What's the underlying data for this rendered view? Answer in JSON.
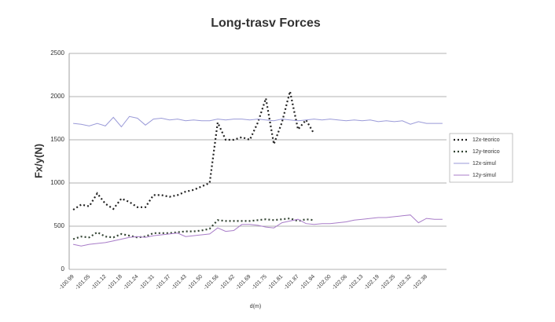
{
  "chart_data": {
    "type": "line",
    "title": "Long-trasv Forces",
    "xlabel": "d(m)",
    "ylabel": "Fx/y(N)",
    "categories": [
      "-100.99",
      null,
      "-101.05",
      null,
      "-101.12",
      null,
      "-101.18",
      null,
      "-101.24",
      null,
      "-101.31",
      null,
      "-101.37",
      null,
      "-101.43",
      null,
      "-101.50",
      null,
      "-101.56",
      null,
      "-101.62",
      null,
      "-101.69",
      null,
      "-101.75",
      null,
      "-101.81",
      null,
      "-101.87",
      null,
      "-101.94",
      null,
      "-102.00",
      null,
      "-102.06",
      null,
      "-102.13",
      null,
      "-102.19",
      null,
      "-102.25",
      null,
      "-102.32",
      null,
      "-102.38",
      null,
      null
    ],
    "series": [
      {
        "name": "12x-teorico",
        "color": "#222222",
        "dash": "2,3",
        "values": [
          690,
          750,
          730,
          880,
          760,
          700,
          820,
          780,
          720,
          720,
          860,
          860,
          840,
          860,
          900,
          920,
          960,
          1000,
          1700,
          1500,
          1500,
          1530,
          1500,
          1700,
          1980,
          1450,
          1700,
          2060,
          1620,
          1730,
          1570,
          null,
          null,
          null,
          null,
          null,
          null,
          null,
          null,
          null,
          null,
          null,
          null,
          null,
          null,
          null,
          null
        ]
      },
      {
        "name": "12y-teorico",
        "color": "#334433",
        "dash": "2,3",
        "values": [
          350,
          380,
          370,
          430,
          380,
          370,
          410,
          390,
          370,
          380,
          420,
          420,
          420,
          430,
          440,
          440,
          450,
          470,
          570,
          560,
          560,
          560,
          560,
          570,
          580,
          570,
          580,
          590,
          560,
          580,
          570,
          null,
          null,
          null,
          null,
          null,
          null,
          null,
          null,
          null,
          null,
          null,
          null,
          null,
          null,
          null,
          null
        ]
      },
      {
        "name": "12x-simul",
        "color": "#9a9ad8",
        "dash": "none",
        "values": [
          1690,
          1680,
          1660,
          1690,
          1660,
          1760,
          1650,
          1770,
          1750,
          1670,
          1740,
          1750,
          1730,
          1740,
          1720,
          1730,
          1720,
          1720,
          1740,
          1730,
          1740,
          1740,
          1730,
          1740,
          1730,
          1720,
          1740,
          1730,
          1720,
          1730,
          1740,
          1730,
          1740,
          1730,
          1720,
          1730,
          1720,
          1730,
          1710,
          1720,
          1710,
          1720,
          1680,
          1710,
          1690,
          1690,
          1690
        ]
      },
      {
        "name": "12y-simul",
        "color": "#a87cc8",
        "dash": "none",
        "values": [
          290,
          270,
          290,
          300,
          310,
          330,
          350,
          370,
          380,
          370,
          390,
          400,
          410,
          420,
          380,
          390,
          400,
          410,
          480,
          440,
          450,
          520,
          520,
          510,
          490,
          480,
          540,
          560,
          580,
          530,
          520,
          530,
          530,
          540,
          550,
          570,
          580,
          590,
          600,
          600,
          610,
          620,
          630,
          540,
          590,
          580,
          580
        ]
      }
    ],
    "ylim": [
      0,
      2500
    ],
    "yticks": [
      0,
      500,
      1000,
      1500,
      2000,
      2500
    ],
    "grid": true,
    "legend": "right"
  }
}
